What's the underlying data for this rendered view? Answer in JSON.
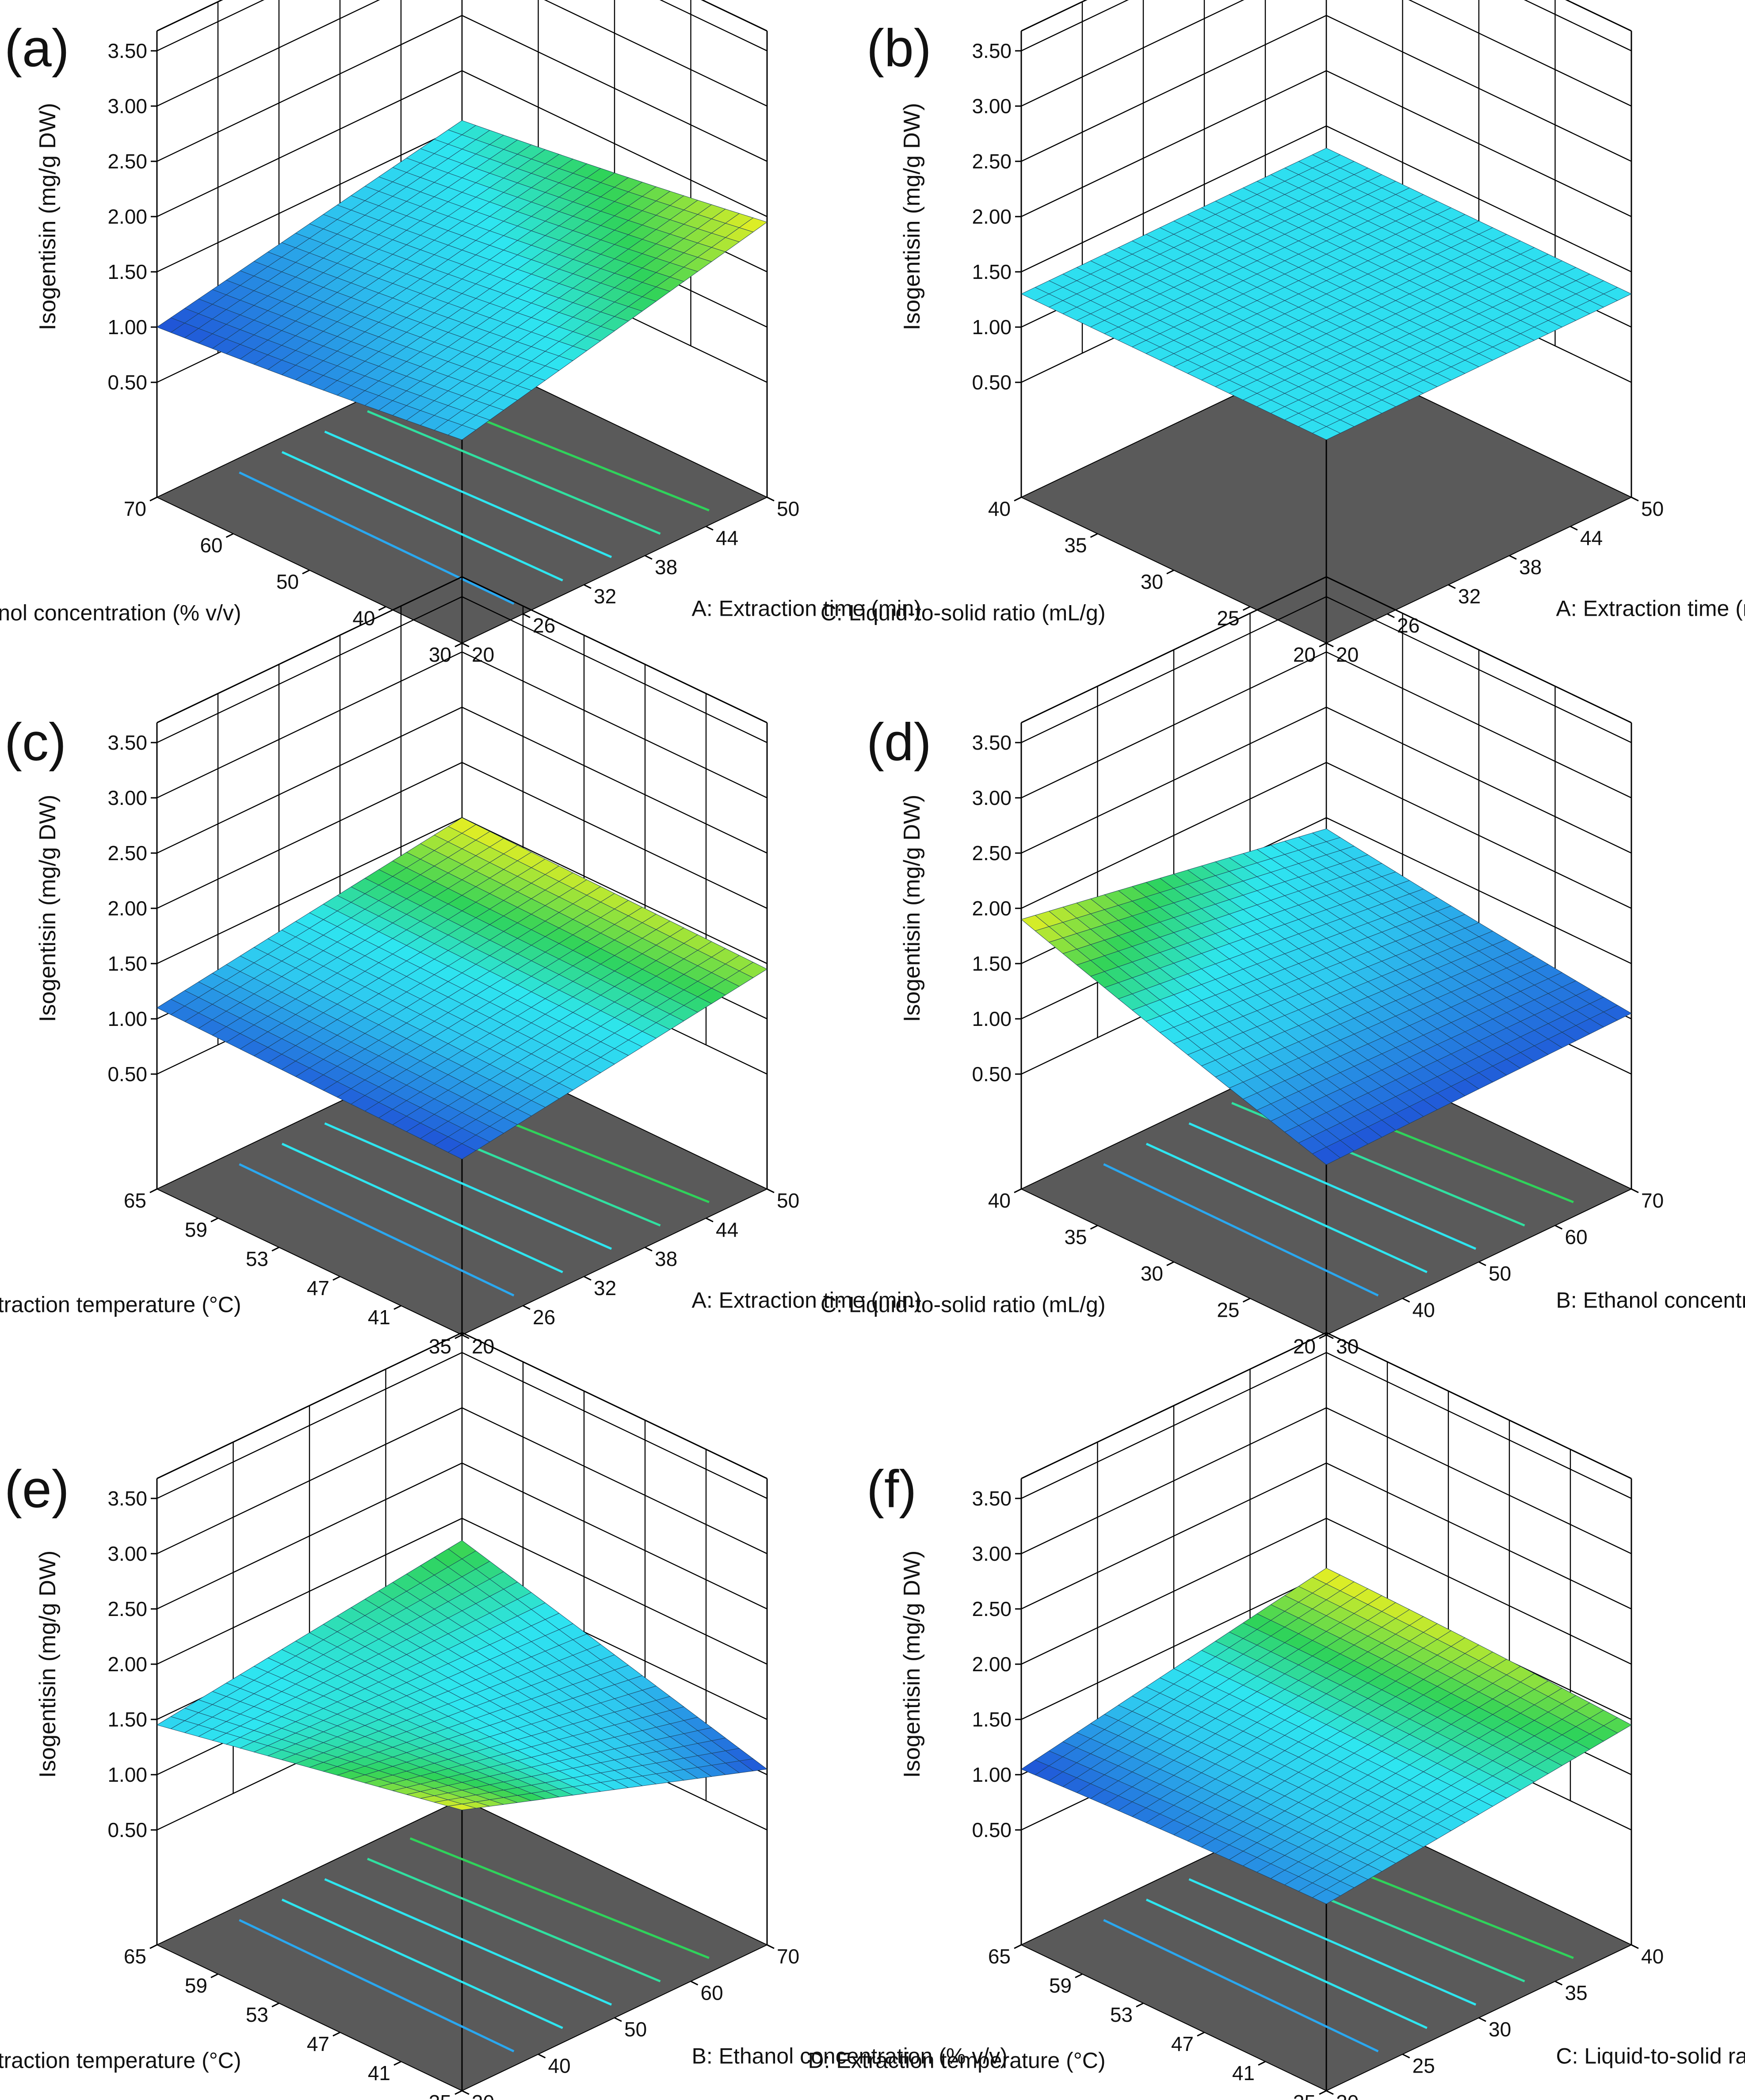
{
  "colors": {
    "blue": "#1f4fd6",
    "cyan": "#2ee6f0",
    "green": "#2fd35a",
    "yellow": "#f0f020",
    "floor": "#5a5a5a"
  },
  "chart_data": [
    {
      "type": "surface3d",
      "panel_label": "(a)",
      "zlabel": "Isogentisin  (mg/g DW)",
      "z_ticks": [
        "0.50",
        "1.00",
        "1.50",
        "2.00",
        "2.50",
        "3.00",
        "3.50"
      ],
      "zlim": [
        0.5,
        3.5
      ],
      "right_axis": {
        "label": "A: Extraction time (min)",
        "ticks": [
          "20",
          "26",
          "32",
          "38",
          "44",
          "50"
        ]
      },
      "left_axis": {
        "label": "B: Ethanol concentration (% v/v)",
        "ticks": [
          "70",
          "60",
          "50",
          "40",
          "30"
        ]
      },
      "surface": {
        "z_origin": 1.3,
        "z_left": 1.0,
        "z_right": 1.95,
        "z_far": 1.55,
        "z_min_point": 0.95
      },
      "contour_lines": 5
    },
    {
      "type": "surface3d",
      "panel_label": "(b)",
      "zlabel": "Isogentisin  (mg/g DW)",
      "z_ticks": [
        "0.50",
        "1.00",
        "1.50",
        "2.00",
        "2.50",
        "3.00",
        "3.50"
      ],
      "zlim": [
        0.5,
        3.5
      ],
      "right_axis": {
        "label": "A: Extraction time (min)",
        "ticks": [
          "20",
          "26",
          "32",
          "38",
          "44",
          "50"
        ]
      },
      "left_axis": {
        "label": "C: Liquid-to-solid ratio (mL/g)",
        "ticks": [
          "40",
          "35",
          "30",
          "25",
          "20"
        ]
      },
      "surface": {
        "z_origin": 1.3,
        "z_left": 1.3,
        "z_right": 1.3,
        "z_far": 1.3,
        "z_min_point": 1.3
      },
      "contour_lines": 0
    },
    {
      "type": "surface3d",
      "panel_label": "(c)",
      "zlabel": "Isogentisin  (mg/g DW)",
      "z_ticks": [
        "0.50",
        "1.00",
        "1.50",
        "2.00",
        "2.50",
        "3.00",
        "3.50"
      ],
      "zlim": [
        0.5,
        3.5
      ],
      "right_axis": {
        "label": "A: Extraction time (min)",
        "ticks": [
          "20",
          "26",
          "32",
          "38",
          "44",
          "50"
        ]
      },
      "left_axis": {
        "label": "D: Extraction temperature  (°C)",
        "ticks": [
          "65",
          "59",
          "53",
          "47",
          "41",
          "35"
        ]
      },
      "surface": {
        "z_origin": 1.05,
        "z_left": 1.1,
        "z_right": 1.45,
        "z_far": 1.5,
        "z_min_point": 1.05
      },
      "contour_lines": 5
    },
    {
      "type": "surface3d",
      "panel_label": "(d)",
      "zlabel": "Isogentisin  (mg/g DW)",
      "z_ticks": [
        "0.50",
        "1.00",
        "1.50",
        "2.00",
        "2.50",
        "3.00",
        "3.50"
      ],
      "zlim": [
        0.5,
        3.5
      ],
      "right_axis": {
        "label": "B: Ethanol concentration (% v/v)",
        "ticks": [
          "30",
          "40",
          "50",
          "60",
          "70"
        ]
      },
      "left_axis": {
        "label": "C: Liquid-to-solid ratio (mL/g)",
        "ticks": [
          "40",
          "35",
          "30",
          "25",
          "20"
        ]
      },
      "surface": {
        "z_origin": 1.0,
        "z_left": 1.9,
        "z_right": 1.05,
        "z_far": 1.4,
        "z_min_point": 0.95
      },
      "contour_lines": 5
    },
    {
      "type": "surface3d",
      "panel_label": "(e)",
      "zlabel": "Isogentisin  (mg/g DW)",
      "z_ticks": [
        "0.50",
        "1.00",
        "1.50",
        "2.00",
        "2.50",
        "3.00",
        "3.50"
      ],
      "zlim": [
        0.5,
        3.5
      ],
      "right_axis": {
        "label": "B: Ethanol concentration (% v/v)",
        "ticks": [
          "30",
          "40",
          "50",
          "60",
          "70"
        ]
      },
      "left_axis": {
        "label": "D: Extraction temperature  (°C)",
        "ticks": [
          "65",
          "59",
          "53",
          "47",
          "41",
          "35"
        ]
      },
      "surface": {
        "z_origin": 2.0,
        "z_left": 1.45,
        "z_right": 1.05,
        "z_far": 1.8,
        "z_min_point": 1.05
      },
      "contour_lines": 5
    },
    {
      "type": "surface3d",
      "panel_label": "(f)",
      "zlabel": "Isogentisin  (mg/g DW)",
      "z_ticks": [
        "0.50",
        "1.00",
        "1.50",
        "2.00",
        "2.50",
        "3.00",
        "3.50"
      ],
      "zlim": [
        0.5,
        3.5
      ],
      "right_axis": {
        "label": "C: Liquid-to-solid ratio (mL/g)",
        "ticks": [
          "20",
          "25",
          "30",
          "35",
          "40"
        ]
      },
      "left_axis": {
        "label": "D: Extraction temperature  (°C)",
        "ticks": [
          "65",
          "59",
          "53",
          "47",
          "41",
          "35"
        ]
      },
      "surface": {
        "z_origin": 1.15,
        "z_left": 1.05,
        "z_right": 1.45,
        "z_far": 1.55,
        "z_min_point": 1.1
      },
      "contour_lines": 5
    }
  ]
}
